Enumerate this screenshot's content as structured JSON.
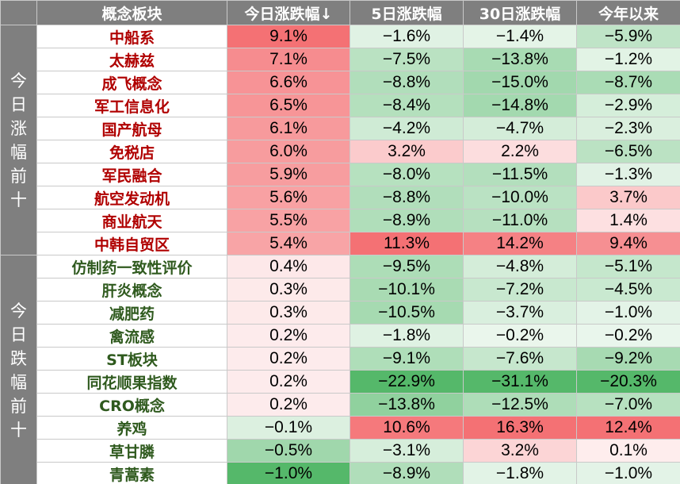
{
  "header": {
    "group": "",
    "name": "概念板块",
    "today": "今日涨跌幅↓",
    "d5": "5日涨跌幅",
    "d30": "30日涨跌幅",
    "ytd": "今年以来"
  },
  "groups": [
    {
      "label": "今日涨幅前十",
      "name_color": "#b00000",
      "rows": [
        {
          "name": "中船系",
          "today": "9.1%",
          "d5": "−1.6%",
          "d30": "−1.4%",
          "ytd": "−5.9%"
        },
        {
          "name": "太赫兹",
          "today": "7.1%",
          "d5": "−7.5%",
          "d30": "−13.8%",
          "ytd": "−1.2%"
        },
        {
          "name": "成飞概念",
          "today": "6.6%",
          "d5": "−8.8%",
          "d30": "−15.0%",
          "ytd": "−8.7%"
        },
        {
          "name": "军工信息化",
          "today": "6.5%",
          "d5": "−8.4%",
          "d30": "−14.8%",
          "ytd": "−2.9%"
        },
        {
          "name": "国产航母",
          "today": "6.1%",
          "d5": "−4.2%",
          "d30": "−4.7%",
          "ytd": "−2.3%"
        },
        {
          "name": "免税店",
          "today": "6.0%",
          "d5": "3.2%",
          "d30": "2.2%",
          "ytd": "−6.5%"
        },
        {
          "name": "军民融合",
          "today": "5.9%",
          "d5": "−8.0%",
          "d30": "−11.5%",
          "ytd": "−1.3%"
        },
        {
          "name": "航空发动机",
          "today": "5.6%",
          "d5": "−8.8%",
          "d30": "−10.0%",
          "ytd": "3.7%"
        },
        {
          "name": "商业航天",
          "today": "5.5%",
          "d5": "−8.9%",
          "d30": "−11.0%",
          "ytd": "1.4%"
        },
        {
          "name": "中韩自贸区",
          "today": "5.4%",
          "d5": "11.3%",
          "d30": "14.2%",
          "ytd": "9.4%"
        }
      ]
    },
    {
      "label": "今日跌幅前十",
      "name_color": "#2f5a1e",
      "rows": [
        {
          "name": "仿制药一致性评价",
          "today": "0.4%",
          "d5": "−9.5%",
          "d30": "−4.8%",
          "ytd": "−5.1%"
        },
        {
          "name": "肝炎概念",
          "today": "0.3%",
          "d5": "−10.1%",
          "d30": "−7.2%",
          "ytd": "−4.5%"
        },
        {
          "name": "减肥药",
          "today": "0.3%",
          "d5": "−10.5%",
          "d30": "−3.7%",
          "ytd": "−1.0%"
        },
        {
          "name": "禽流感",
          "today": "0.2%",
          "d5": "−1.8%",
          "d30": "−0.2%",
          "ytd": "−0.2%"
        },
        {
          "name": "ST板块",
          "today": "0.2%",
          "d5": "−9.1%",
          "d30": "−7.6%",
          "ytd": "−9.2%"
        },
        {
          "name": "同花顺果指数",
          "today": "0.2%",
          "d5": "−22.9%",
          "d30": "−31.1%",
          "ytd": "−20.3%"
        },
        {
          "name": "CRO概念",
          "today": "0.2%",
          "d5": "−13.8%",
          "d30": "−12.5%",
          "ytd": "−7.0%"
        },
        {
          "name": "养鸡",
          "today": "−0.1%",
          "d5": "10.6%",
          "d30": "16.3%",
          "ytd": "12.4%"
        },
        {
          "name": "草甘膦",
          "today": "−0.5%",
          "d5": "−3.1%",
          "d30": "3.2%",
          "ytd": "0.1%"
        },
        {
          "name": "青蒿素",
          "today": "−1.0%",
          "d5": "−8.9%",
          "d30": "−1.8%",
          "ytd": "−1.0%"
        }
      ]
    }
  ],
  "colors": {
    "header_bg": "#7f7f7f",
    "header_text": "#ffffff",
    "positive_max": "#f47174",
    "negative_max": "#55b86a",
    "up_name": "#b00000",
    "down_name": "#2f5a1e",
    "border": "#c9c9c9"
  }
}
